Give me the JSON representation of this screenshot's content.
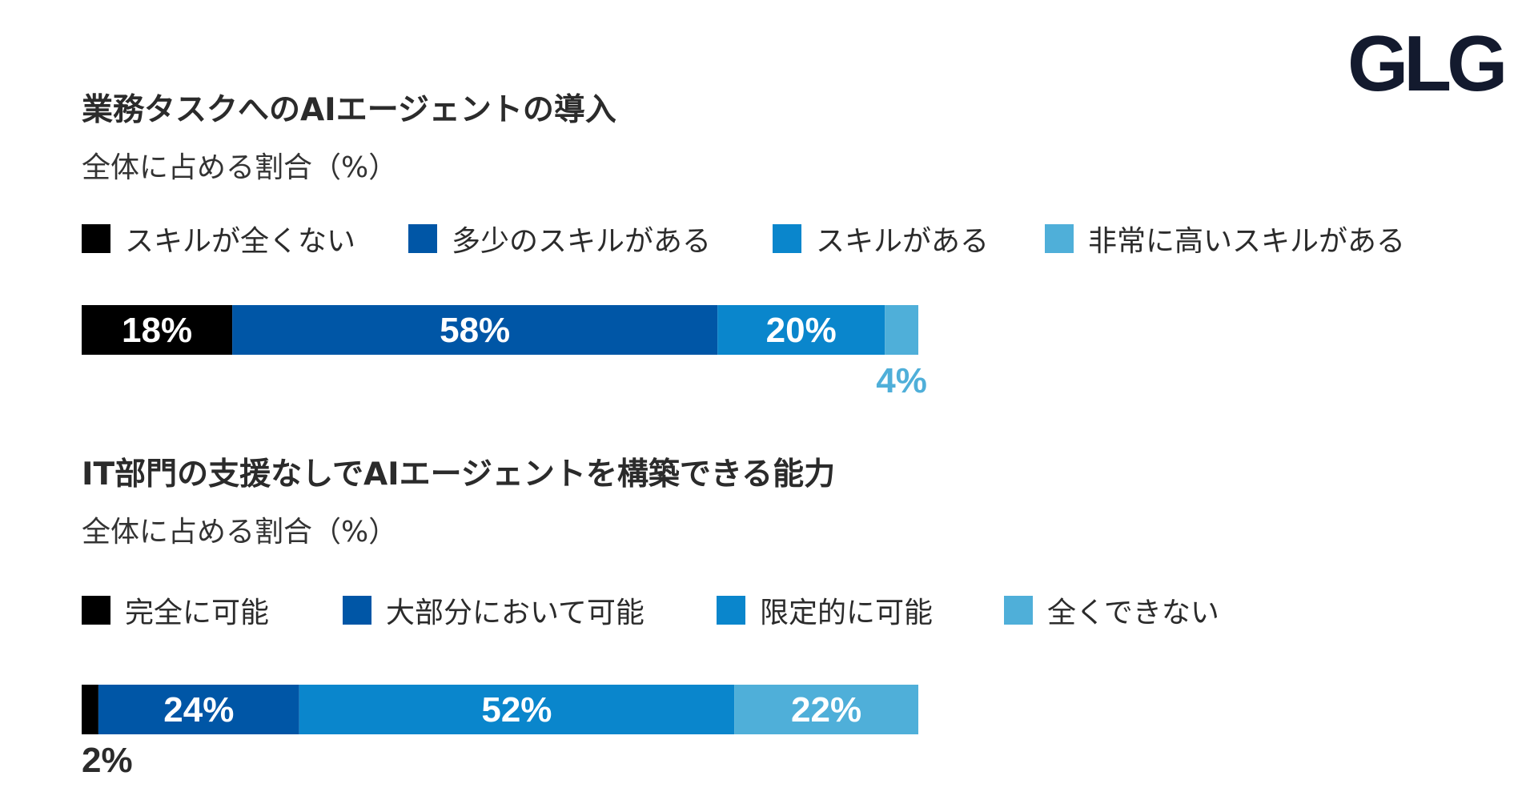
{
  "logo": "GLG",
  "chart_data": [
    {
      "type": "bar",
      "orientation": "horizontal-stacked",
      "title": "業務タスクへのAIエージェントの導入",
      "subtitle": "全体に占める割合（%）",
      "categories": [
        "スキルが全くない",
        "多少のスキルがある",
        "スキルがある",
        "非常に高いスキルがある"
      ],
      "values": [
        18,
        58,
        20,
        4
      ],
      "value_labels": [
        "18%",
        "58%",
        "20%",
        "4%"
      ],
      "colors": [
        "#000000",
        "#0056a6",
        "#0a86cc",
        "#4fafd9"
      ],
      "outside_label_colors": [
        "#000000",
        "#0056a6",
        "#0a86cc",
        "#4fafd9"
      ],
      "xlim": [
        0,
        100
      ]
    },
    {
      "type": "bar",
      "orientation": "horizontal-stacked",
      "title": "IT部門の支援なしでAIエージェントを構築できる能力",
      "subtitle": "全体に占める割合（%）",
      "categories": [
        "完全に可能",
        "大部分において可能",
        "限定的に可能",
        "全くできない"
      ],
      "values": [
        2,
        24,
        52,
        22
      ],
      "value_labels": [
        "2%",
        "24%",
        "52%",
        "22%"
      ],
      "colors": [
        "#000000",
        "#0056a6",
        "#0a86cc",
        "#4fafd9"
      ],
      "outside_label_colors": [
        "#2b2b2b",
        "#0056a6",
        "#0a86cc",
        "#4fafd9"
      ],
      "xlim": [
        0,
        100
      ]
    }
  ]
}
